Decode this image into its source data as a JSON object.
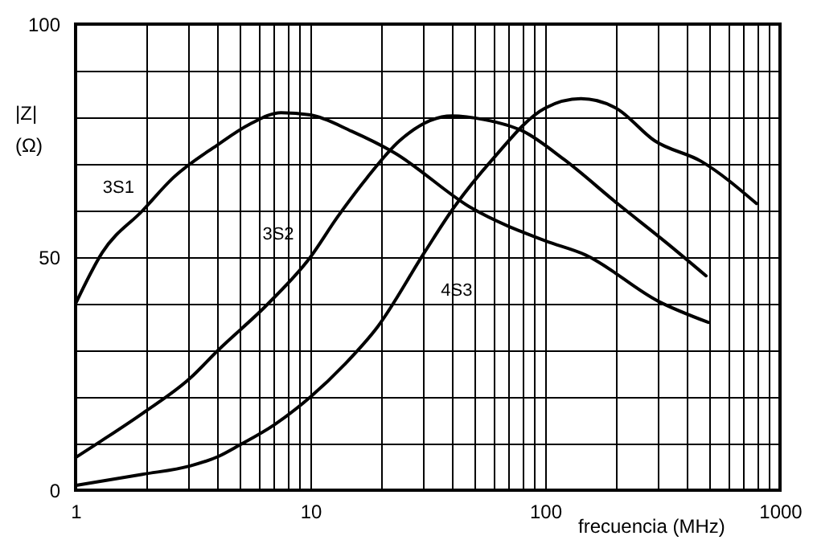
{
  "chart_data": {
    "type": "line",
    "xlabel": "frecuencia (MHz)",
    "ylabel": "|Z| (Ω)",
    "log": "x",
    "grid": true,
    "legend": false,
    "marker": "none",
    "line_style": "solid",
    "xlim": [
      1,
      1000
    ],
    "xticks": [
      1,
      {
        "value": 2,
        "label": null
      },
      {
        "value": 3,
        "label": null
      },
      {
        "value": 4,
        "label": null
      },
      {
        "value": 5,
        "label": null
      },
      {
        "value": 6,
        "label": null
      },
      {
        "value": 7,
        "label": null
      },
      {
        "value": 8,
        "label": null
      },
      {
        "value": 9,
        "label": null
      },
      10,
      {
        "value": 20,
        "label": null
      },
      {
        "value": 30,
        "label": null
      },
      {
        "value": 40,
        "label": null
      },
      {
        "value": 50,
        "label": null
      },
      {
        "value": 60,
        "label": null
      },
      {
        "value": 70,
        "label": null
      },
      {
        "value": 80,
        "label": null
      },
      {
        "value": 90,
        "label": null
      },
      100,
      {
        "value": 200,
        "label": null
      },
      {
        "value": 300,
        "label": null
      },
      {
        "value": 400,
        "label": null
      },
      {
        "value": 500,
        "label": null
      },
      {
        "value": 600,
        "label": null
      },
      {
        "value": 700,
        "label": null
      },
      {
        "value": 800,
        "label": null
      },
      {
        "value": 900,
        "label": null
      },
      1000
    ],
    "ylim": [
      0,
      100
    ],
    "yticks": [
      0,
      {
        "value": 10,
        "label": null
      },
      {
        "value": 20,
        "label": null
      },
      {
        "value": 30,
        "label": null
      },
      {
        "value": 40,
        "label": null
      },
      50,
      {
        "value": 60,
        "label": null
      },
      {
        "value": 70,
        "label": null
      },
      {
        "value": 80,
        "label": null
      },
      {
        "value": 90,
        "label": null
      },
      100
    ],
    "series": [
      {
        "name": "3S1",
        "color": "#000000",
        "x": [
          1,
          1.3,
          1.93,
          2.6,
          4,
          5.5,
          7.5,
          10,
          15,
          22.6,
          48.7,
          100,
          148,
          304,
          495
        ],
        "values": [
          40,
          51,
          60,
          67,
          74,
          78.5,
          81,
          80.5,
          77,
          72.5,
          60.5,
          53.5,
          50.5,
          40.5,
          36
        ]
      },
      {
        "name": "3S2",
        "color": "#000000",
        "x": [
          1,
          1.28,
          1.93,
          3.07,
          4.04,
          6.6,
          10,
          13,
          17.4,
          24,
          40,
          55,
          80.6,
          120,
          203,
          330,
          484
        ],
        "values": [
          7,
          10.5,
          16.5,
          24,
          30,
          40,
          50,
          58.5,
          67,
          75,
          80.3,
          79.5,
          77,
          71,
          61.5,
          53,
          46
        ]
      },
      {
        "name": "4S3",
        "color": "#000000",
        "x": [
          1,
          1.93,
          3.07,
          4.04,
          5,
          7,
          10,
          14,
          19.3,
          30.6,
          40,
          59,
          100,
          142,
          200,
          292,
          464,
          794
        ],
        "values": [
          1,
          3.4,
          5.2,
          7.2,
          9.7,
          14,
          20,
          27,
          35,
          51,
          60,
          70.7,
          82,
          84,
          82,
          75,
          70.5,
          61.5
        ]
      }
    ]
  }
}
